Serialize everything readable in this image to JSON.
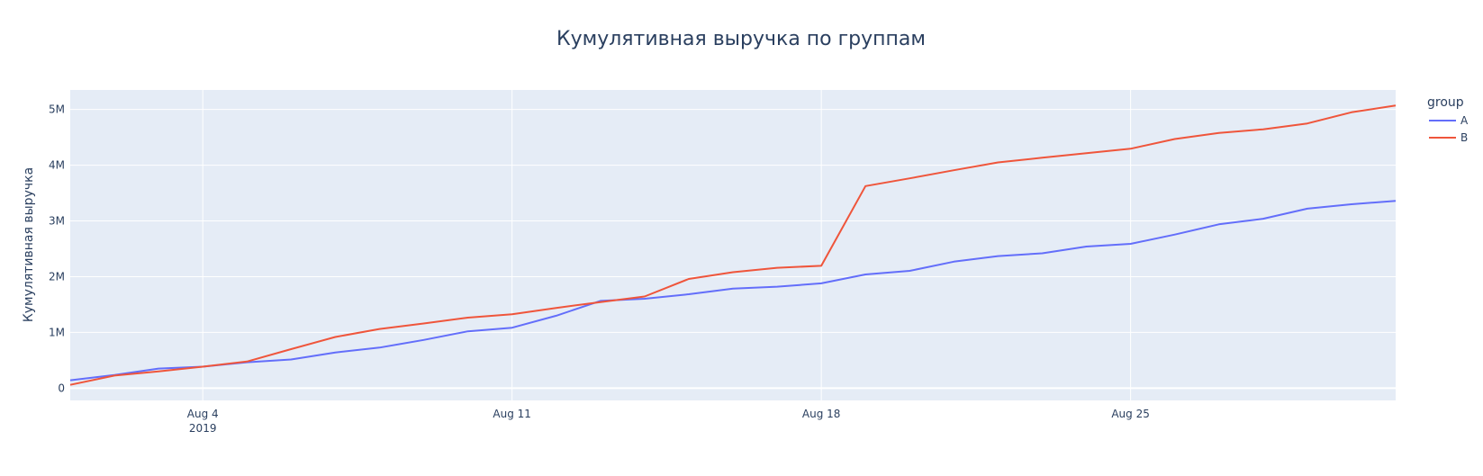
{
  "chart_data": {
    "type": "line",
    "title": "Кумулятивная выручка по группам",
    "xlabel": "",
    "ylabel": "Кумулятивная выручка",
    "legend": {
      "title": "group",
      "placement": "right"
    },
    "x_axis": {
      "type": "date",
      "range": [
        "2019-08-01",
        "2019-08-31"
      ],
      "ticks": [
        {
          "date": "2019-08-04",
          "label": "Aug 4",
          "sublabel": "2019"
        },
        {
          "date": "2019-08-11",
          "label": "Aug 11",
          "sublabel": ""
        },
        {
          "date": "2019-08-18",
          "label": "Aug 18",
          "sublabel": ""
        },
        {
          "date": "2019-08-25",
          "label": "Aug 25",
          "sublabel": ""
        }
      ]
    },
    "y_axis": {
      "range": [
        -220000,
        5350000
      ],
      "ticks": [
        {
          "value": 0,
          "label": "0"
        },
        {
          "value": 1000000,
          "label": "1M"
        },
        {
          "value": 2000000,
          "label": "2M"
        },
        {
          "value": 3000000,
          "label": "3M"
        },
        {
          "value": 4000000,
          "label": "4M"
        },
        {
          "value": 5000000,
          "label": "5M"
        }
      ]
    },
    "grid": true,
    "x": [
      "2019-08-01",
      "2019-08-02",
      "2019-08-03",
      "2019-08-04",
      "2019-08-05",
      "2019-08-06",
      "2019-08-07",
      "2019-08-08",
      "2019-08-09",
      "2019-08-10",
      "2019-08-11",
      "2019-08-12",
      "2019-08-13",
      "2019-08-14",
      "2019-08-15",
      "2019-08-16",
      "2019-08-17",
      "2019-08-18",
      "2019-08-19",
      "2019-08-20",
      "2019-08-21",
      "2019-08-22",
      "2019-08-23",
      "2019-08-24",
      "2019-08-25",
      "2019-08-26",
      "2019-08-27",
      "2019-08-28",
      "2019-08-29",
      "2019-08-30",
      "2019-08-31"
    ],
    "series": [
      {
        "name": "A",
        "color": "#636efa",
        "values": [
          142000,
          235000,
          352000,
          385000,
          465000,
          515000,
          640000,
          728000,
          865000,
          1020000,
          1085000,
          1300000,
          1565000,
          1605000,
          1685000,
          1785000,
          1820000,
          1880000,
          2040000,
          2105000,
          2270000,
          2370000,
          2420000,
          2540000,
          2590000,
          2755000,
          2940000,
          3040000,
          3220000,
          3300000,
          3360000
        ]
      },
      {
        "name": "B",
        "color": "#ef553b",
        "values": [
          60000,
          225000,
          300000,
          385000,
          478000,
          700000,
          918000,
          1062000,
          1160000,
          1265000,
          1325000,
          1440000,
          1545000,
          1645000,
          1960000,
          2080000,
          2160000,
          2195000,
          3625000,
          3765000,
          3910000,
          4050000,
          4135000,
          4215000,
          4295000,
          4470000,
          4580000,
          4645000,
          4750000,
          4950000,
          5070000
        ]
      }
    ]
  }
}
